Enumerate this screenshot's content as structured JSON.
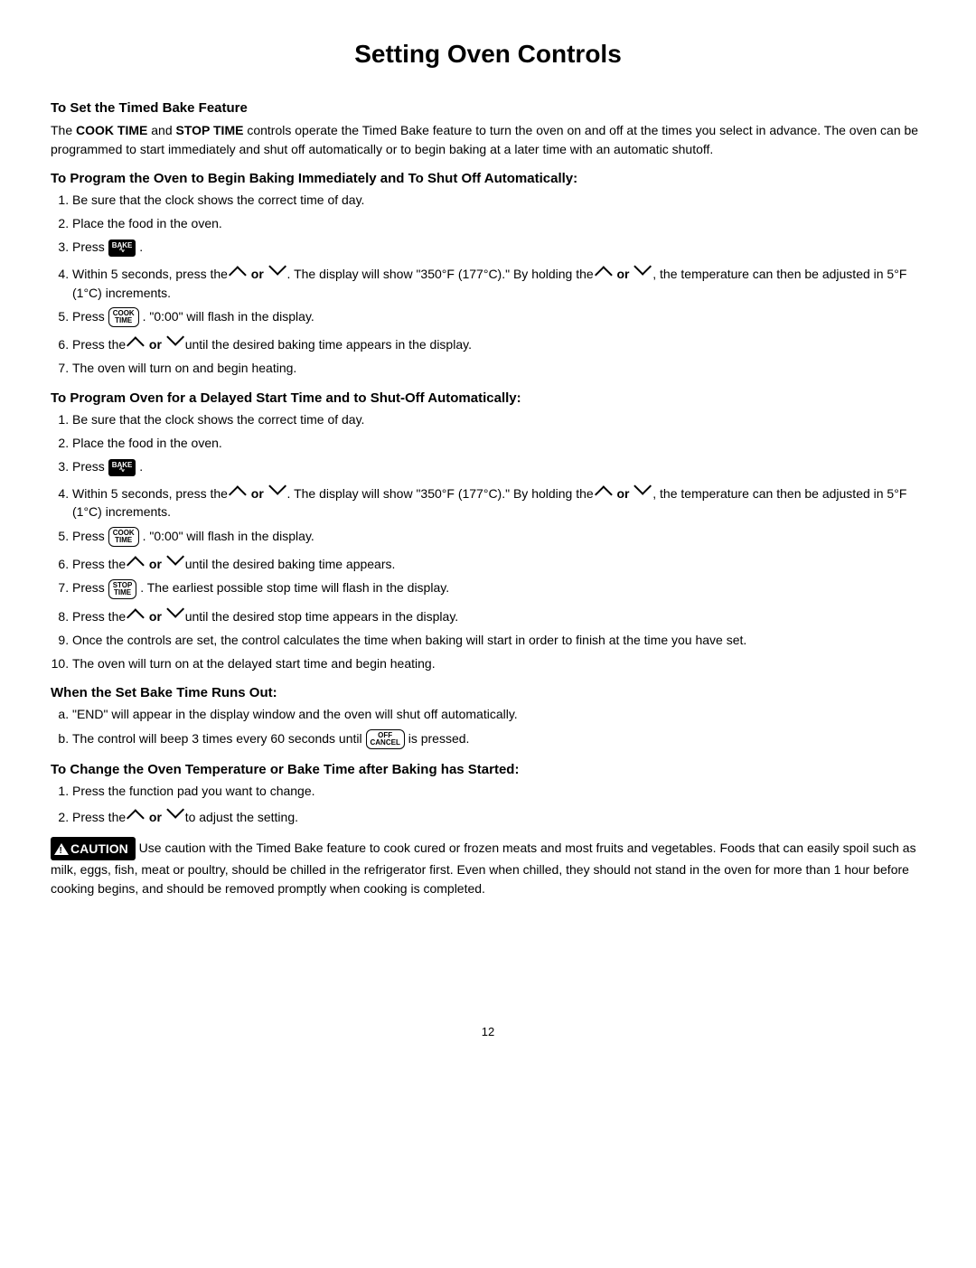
{
  "pageTitle": "Setting Oven Controls",
  "section": {
    "heading": "To Set the Timed Bake Feature",
    "intro_pre": "The ",
    "intro_b1": "COOK TIME",
    "intro_mid": " and ",
    "intro_b2": "STOP TIME",
    "intro_post": " controls operate the Timed Bake feature to turn the oven on and off at the times you select in advance. The oven can be programmed to start immediately and shut off automatically or to begin baking at a later time with an automatic shutoff."
  },
  "progA": {
    "heading": "To Program the Oven to Begin Baking Immediately and To Shut Off Automatically:",
    "l1": "Be sure that the clock shows the correct time of day.",
    "l2": "Place the food in the oven.",
    "l3a": "Press ",
    "l3b": ".",
    "l4a": "Within 5 seconds, press the ",
    "l4or1": " or ",
    "l4mid": " . The display will show \"350°F (177°C).\" By holding the ",
    "l4or2": " or ",
    "l4end": " , the temperature can then be adjusted in 5°F (1°C) increments.",
    "l5a": "Press ",
    "l5b": ". \"0:00\" will flash in the display.",
    "l6a": "Press the ",
    "l6or": " or ",
    "l6b": " until the desired baking time appears in the display.",
    "l7": "The oven will turn on and begin heating."
  },
  "progB": {
    "heading": "To Program Oven for a Delayed Start Time and to Shut-Off Automatically:",
    "l1": "Be sure that the clock shows the correct time of day.",
    "l2": "Place the food in the oven.",
    "l3a": "Press ",
    "l3b": ".",
    "l4a": "Within 5 seconds, press the ",
    "l4or1": " or ",
    "l4mid": " . The display will show \"350°F (177°C).\" By holding the ",
    "l4or2": " or ",
    "l4end": " , the temperature can then be adjusted in 5°F (1°C) increments.",
    "l5a": "Press ",
    "l5b": ". \"0:00\" will flash in the display.",
    "l6a": "Press the ",
    "l6or": " or ",
    "l6b": " until the desired baking time appears.",
    "l7a": "Press ",
    "l7b": ". The earliest possible stop time will flash in the display.",
    "l8a": "Press the ",
    "l8or": " or ",
    "l8b": " until the desired stop time appears in the display.",
    "l9": "Once the controls are set, the control calculates the time when baking will start in order to finish at the time you have set.",
    "l10": "The oven will turn on at the delayed start time and begin heating."
  },
  "runsOut": {
    "heading": "When the Set Bake Time Runs Out:",
    "la": "\"END\" will appear in the display window and the oven will shut off automatically.",
    "lb_a": "The control will beep 3 times every 60 seconds until ",
    "lb_b": " is pressed."
  },
  "change": {
    "heading": "To Change the Oven Temperature or Bake Time after Baking has Started:",
    "l1": "Press the function pad you want to change.",
    "l2a": "Press the ",
    "l2or": " or ",
    "l2b": " to adjust the setting."
  },
  "caution": {
    "label": "CAUTION",
    "text": " Use caution with the Timed Bake feature to cook cured or frozen meats and most fruits and vegetables. Foods that can easily spoil such as milk, eggs, fish, meat or poultry, should be chilled in the refrigerator first. Even when chilled, they should not stand in the oven for more than 1 hour before cooking begins, and should be removed promptly when cooking is completed."
  },
  "buttons": {
    "bake": "BAKE",
    "cookTime": "COOK\nTIME",
    "stopTime": "STOP\nTIME",
    "offCancel": "OFF\nCANCEL"
  },
  "pageNumber": "12"
}
